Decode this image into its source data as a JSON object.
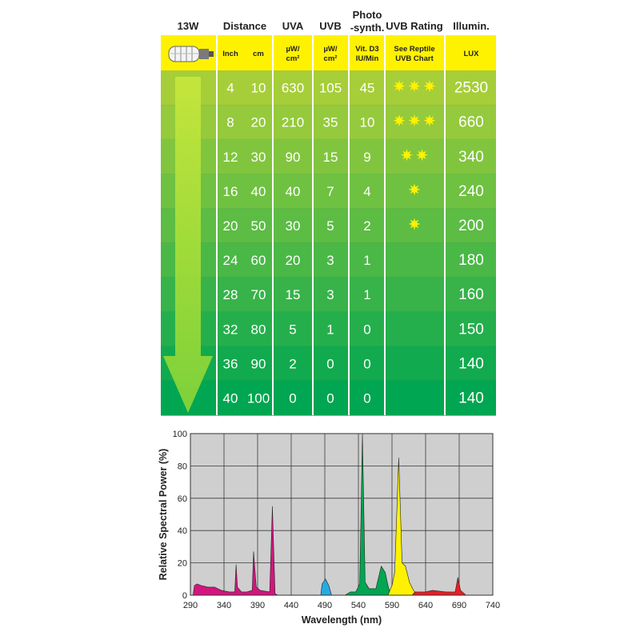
{
  "table": {
    "headers": {
      "wattage": "13W",
      "distance": "Distance",
      "uva": "UVA",
      "uvb": "UVB",
      "photo_line1": "Photo",
      "photo_line2": "-synth.",
      "rating": "UVB Rating",
      "illum": "Illumin."
    },
    "subheaders": {
      "inch": "Inch",
      "cm": "cm",
      "uva_unit_line1": "µW/",
      "uva_unit_line2": "cm²",
      "uvb_unit_line1": "µW/",
      "uvb_unit_line2": "cm²",
      "photo_unit_line1": "Vit. D3",
      "photo_unit_line2": "IU/Min",
      "rating_unit_line1": "See Reptile",
      "rating_unit_line2": "UVB Chart",
      "lux": "LUX"
    },
    "bulb_icon": "cfl-bulb-icon",
    "arrow_icon": "down-arrow-icon",
    "star_icon": "sun-star-icon",
    "rows": [
      {
        "inch": "4",
        "cm": "10",
        "uva": "630",
        "uvb": "105",
        "photo": "45",
        "stars": 3,
        "lux": "2530"
      },
      {
        "inch": "8",
        "cm": "20",
        "uva": "210",
        "uvb": "35",
        "photo": "10",
        "stars": 3,
        "lux": "660"
      },
      {
        "inch": "12",
        "cm": "30",
        "uva": "90",
        "uvb": "15",
        "photo": "9",
        "stars": 2,
        "lux": "340"
      },
      {
        "inch": "16",
        "cm": "40",
        "uva": "40",
        "uvb": "7",
        "photo": "4",
        "stars": 1,
        "lux": "240"
      },
      {
        "inch": "20",
        "cm": "50",
        "uva": "30",
        "uvb": "5",
        "photo": "2",
        "stars": 1,
        "lux": "200"
      },
      {
        "inch": "24",
        "cm": "60",
        "uva": "20",
        "uvb": "3",
        "photo": "1",
        "stars": 0,
        "lux": "180"
      },
      {
        "inch": "28",
        "cm": "70",
        "uva": "15",
        "uvb": "3",
        "photo": "1",
        "stars": 0,
        "lux": "160"
      },
      {
        "inch": "32",
        "cm": "80",
        "uva": "5",
        "uvb": "1",
        "photo": "0",
        "stars": 0,
        "lux": "150"
      },
      {
        "inch": "36",
        "cm": "90",
        "uva": "2",
        "uvb": "0",
        "photo": "0",
        "stars": 0,
        "lux": "140"
      },
      {
        "inch": "40",
        "cm": "100",
        "uva": "0",
        "uvb": "0",
        "photo": "0",
        "stars": 0,
        "lux": "140"
      }
    ],
    "colors": {
      "header_yellow": "#fff200",
      "row_top": "#a6ce39",
      "row_bottom": "#00a651",
      "arrow": "#b7e332",
      "star": "#fff200"
    }
  },
  "chart_data": {
    "type": "area",
    "xlabel": "Wavelength (nm)",
    "ylabel": "Relative Spectral Power (%)",
    "xlim": [
      290,
      740
    ],
    "ylim": [
      0,
      100
    ],
    "xticks": [
      290,
      340,
      390,
      440,
      490,
      540,
      590,
      640,
      690,
      740
    ],
    "yticks": [
      0,
      20,
      40,
      60,
      80,
      100
    ],
    "grid": true,
    "background": "#cfcfcf",
    "series": [
      {
        "color": "#d4147f",
        "points": [
          [
            294,
            0
          ],
          [
            296,
            6
          ],
          [
            300,
            7
          ],
          [
            306,
            6
          ],
          [
            316,
            5
          ],
          [
            326,
            5
          ],
          [
            336,
            3
          ],
          [
            348,
            2
          ],
          [
            356,
            2
          ],
          [
            358,
            19
          ],
          [
            360,
            5
          ],
          [
            366,
            2
          ],
          [
            374,
            2
          ],
          [
            382,
            3
          ],
          [
            384,
            27
          ],
          [
            388,
            5
          ],
          [
            394,
            3
          ],
          [
            408,
            2
          ],
          [
            412,
            55
          ],
          [
            416,
            1
          ],
          [
            420,
            0
          ]
        ]
      },
      {
        "color": "#29a9e0",
        "points": [
          [
            484,
            0
          ],
          [
            486,
            7
          ],
          [
            491,
            10
          ],
          [
            496,
            6
          ],
          [
            500,
            0
          ]
        ]
      },
      {
        "color": "#00a651",
        "points": [
          [
            520,
            0
          ],
          [
            528,
            2
          ],
          [
            536,
            2
          ],
          [
            542,
            7
          ],
          [
            546,
            100
          ],
          [
            550,
            8
          ],
          [
            556,
            4
          ],
          [
            566,
            4
          ],
          [
            574,
            18
          ],
          [
            580,
            14
          ],
          [
            584,
            6
          ],
          [
            588,
            0
          ]
        ]
      },
      {
        "color": "#fff200",
        "points": [
          [
            584,
            0
          ],
          [
            590,
            6
          ],
          [
            594,
            14
          ],
          [
            600,
            85
          ],
          [
            605,
            20
          ],
          [
            610,
            18
          ],
          [
            616,
            8
          ],
          [
            622,
            3
          ],
          [
            628,
            0
          ]
        ]
      },
      {
        "color": "#ed1c24",
        "points": [
          [
            620,
            0
          ],
          [
            624,
            2
          ],
          [
            640,
            2
          ],
          [
            650,
            3
          ],
          [
            670,
            2
          ],
          [
            684,
            2
          ],
          [
            688,
            11
          ],
          [
            692,
            3
          ],
          [
            700,
            0
          ]
        ]
      }
    ]
  }
}
